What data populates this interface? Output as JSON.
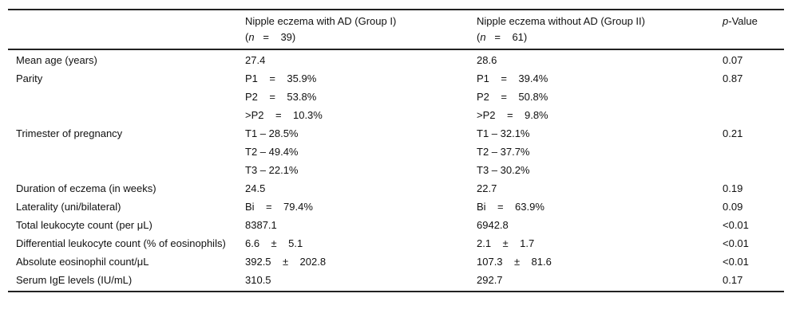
{
  "header": {
    "col1": "",
    "group1_title": "Nipple eczema with AD (Group I)",
    "group1_n": "n",
    "group1_eq": "   =    39)",
    "group2_title": "Nipple eczema without AD (Group II)",
    "group2_n": "n",
    "group2_eq": "   =    61)",
    "p_italic": "p",
    "p_rest": "-Value"
  },
  "rows": [
    {
      "label": "Mean age (years)",
      "g1": [
        "27.4"
      ],
      "g2": [
        "28.6"
      ],
      "p": "0.07"
    },
    {
      "label": "Parity",
      "g1": [
        "P1    =    35.9%",
        "P2    =    53.8%",
        ">P2    =    10.3%"
      ],
      "g2": [
        "P1    =    39.4%",
        "P2    =    50.8%",
        ">P2    =    9.8%"
      ],
      "p": "0.87"
    },
    {
      "label": "Trimester of pregnancy",
      "g1": [
        "T1 – 28.5%",
        "T2 – 49.4%",
        "T3 – 22.1%"
      ],
      "g2": [
        "T1 – 32.1%",
        "T2 – 37.7%",
        "T3 – 30.2%"
      ],
      "p": "0.21"
    },
    {
      "label": "Duration of eczema (in weeks)",
      "g1": [
        "24.5"
      ],
      "g2": [
        "22.7"
      ],
      "p": "0.19"
    },
    {
      "label": "Laterality (uni/bilateral)",
      "g1": [
        "Bi    =    79.4%"
      ],
      "g2": [
        "Bi    =    63.9%"
      ],
      "p": "0.09"
    },
    {
      "label": "Total leukocyte count (per μL)",
      "g1": [
        "8387.1"
      ],
      "g2": [
        "6942.8"
      ],
      "p": "<0.01"
    },
    {
      "label": "Differential leukocyte count (% of eosinophils)",
      "g1": [
        "6.6    ±    5.1"
      ],
      "g2": [
        "2.1    ±    1.7"
      ],
      "p": "<0.01"
    },
    {
      "label": "Absolute eosinophil count/μL",
      "g1": [
        "392.5    ±    202.8"
      ],
      "g2": [
        "107.3    ±    81.6"
      ],
      "p": "<0.01"
    },
    {
      "label": "Serum IgE levels (IU/mL)",
      "g1": [
        "310.5"
      ],
      "g2": [
        "292.7"
      ],
      "p": "0.17"
    }
  ]
}
